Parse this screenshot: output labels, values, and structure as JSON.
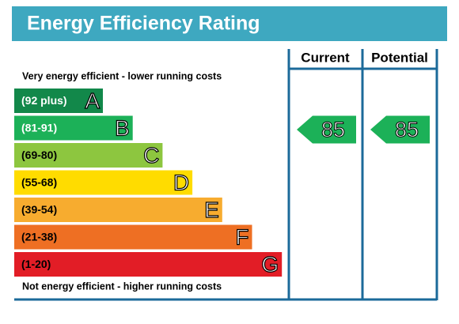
{
  "header": {
    "title": "Energy Efficiency Rating"
  },
  "columns": [
    "Current",
    "Potential"
  ],
  "top_note": "Very energy efficient - lower running costs",
  "bottom_note": "Not energy efficient - higher running costs",
  "bands": [
    {
      "range": "(92 plus)",
      "letter": "A",
      "color": "#12884a",
      "text_color": "#ffffff"
    },
    {
      "range": "(81-91)",
      "letter": "B",
      "color": "#1cb158",
      "text_color": "#ffffff"
    },
    {
      "range": "(69-80)",
      "letter": "C",
      "color": "#8dc63f",
      "text_color": "#000000"
    },
    {
      "range": "(55-68)",
      "letter": "D",
      "color": "#ffdc00",
      "text_color": "#000000"
    },
    {
      "range": "(39-54)",
      "letter": "E",
      "color": "#f7ac2f",
      "text_color": "#000000"
    },
    {
      "range": "(21-38)",
      "letter": "F",
      "color": "#ee6f23",
      "text_color": "#000000"
    },
    {
      "range": "(1-20)",
      "letter": "G",
      "color": "#e21d26",
      "text_color": "#000000"
    }
  ],
  "ratings": {
    "current": 85,
    "potential": 85
  }
}
